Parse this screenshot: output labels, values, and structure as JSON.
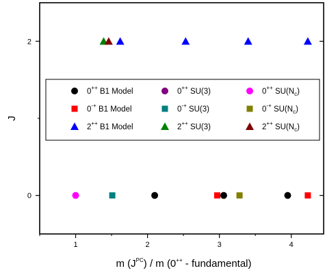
{
  "chart_data": {
    "type": "scatter",
    "xlabel_parts": [
      "m (J",
      "PC",
      ") / m (0",
      "++",
      " - fundamental)"
    ],
    "ylabel": "J",
    "xlim": [
      0.5,
      4.45
    ],
    "ylim": [
      -0.5,
      2.5
    ],
    "x_ticks": [
      1,
      2,
      3,
      4
    ],
    "x_tick_labels": [
      "1",
      "2",
      "3",
      "4"
    ],
    "y_ticks": [
      0,
      2
    ],
    "y_tick_labels": [
      "0",
      "2"
    ],
    "grid": false,
    "legend_position": "middle",
    "series": [
      {
        "key": "b1_0pp",
        "legend": {
          "pre": "0",
          "sup": "++",
          "post": " B1 Model",
          "sub": ""
        },
        "marker": "circle",
        "color": "#000000",
        "points": [
          {
            "x": 2.1,
            "y": 0
          },
          {
            "x": 3.06,
            "y": 0
          },
          {
            "x": 3.95,
            "y": 0
          }
        ]
      },
      {
        "key": "su3_0pp",
        "legend": {
          "pre": "0",
          "sup": "++",
          "post": " SU(3)",
          "sub": ""
        },
        "marker": "circle",
        "color": "#800080",
        "points": []
      },
      {
        "key": "sunc_0pp",
        "legend": {
          "pre": "0",
          "sup": "++",
          "post": " SU(N",
          "sub": "c",
          "tail": ")"
        },
        "marker": "circle",
        "color": "#ff00ff",
        "points": [
          {
            "x": 1.0,
            "y": 0
          }
        ]
      },
      {
        "key": "b1_0mp",
        "legend": {
          "pre": "0",
          "sup": "-+",
          "post": " B1 Model",
          "sub": ""
        },
        "marker": "square",
        "color": "#ff0000",
        "points": [
          {
            "x": 2.97,
            "y": 0
          },
          {
            "x": 4.23,
            "y": 0
          }
        ]
      },
      {
        "key": "su3_0mp",
        "legend": {
          "pre": "0",
          "sup": "-+",
          "post": " SU(3)",
          "sub": ""
        },
        "marker": "square",
        "color": "#008080",
        "points": [
          {
            "x": 1.51,
            "y": 0
          }
        ]
      },
      {
        "key": "sunc_0mp",
        "legend": {
          "pre": "0",
          "sup": "-+",
          "post": " SU(N",
          "sub": "c",
          "tail": ")"
        },
        "marker": "square",
        "color": "#808000",
        "points": [
          {
            "x": 3.28,
            "y": 0
          }
        ]
      },
      {
        "key": "b1_2pp",
        "legend": {
          "pre": "2",
          "sup": "++",
          "post": " B1 Model",
          "sub": ""
        },
        "marker": "triangle",
        "color": "#0000ff",
        "points": [
          {
            "x": 1.62,
            "y": 2
          },
          {
            "x": 2.53,
            "y": 2
          },
          {
            "x": 3.4,
            "y": 2
          },
          {
            "x": 4.23,
            "y": 2
          }
        ]
      },
      {
        "key": "su3_2pp",
        "legend": {
          "pre": "2",
          "sup": "++",
          "post": " SU(3)",
          "sub": ""
        },
        "marker": "triangle",
        "color": "#008000",
        "points": [
          {
            "x": 1.39,
            "y": 2
          }
        ]
      },
      {
        "key": "sunc_2pp",
        "legend": {
          "pre": "2",
          "sup": "++",
          "post": " SU(N",
          "sub": "c",
          "tail": ")"
        },
        "marker": "triangle",
        "color": "#800000",
        "points": [
          {
            "x": 1.46,
            "y": 2
          }
        ]
      }
    ]
  }
}
